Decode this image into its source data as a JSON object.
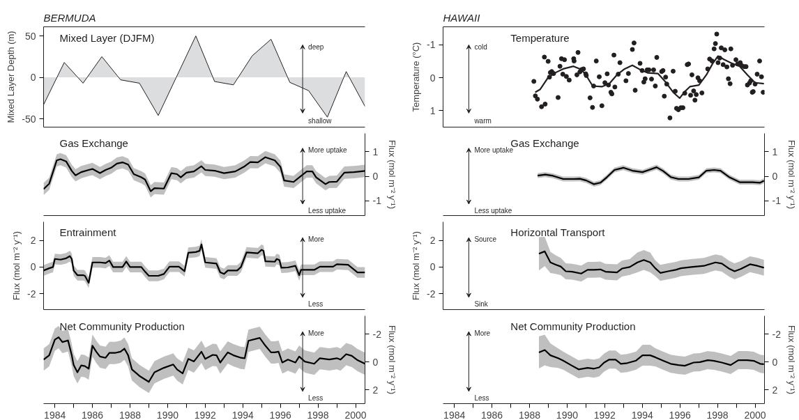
{
  "chart_data": [
    {
      "type": "area",
      "subtitle": "BERMUDA",
      "title": "Mixed Layer (DJFM)",
      "ylabel": "Mixed Layer Depth (m)",
      "xlim": [
        1983.4,
        2000.5
      ],
      "ylim": [
        -60,
        61
      ],
      "yticks": [
        50,
        0,
        -50
      ],
      "tick_labels": "y",
      "annotations": [
        "deep",
        "shallow"
      ],
      "series": [
        {
          "color": "#dcdddf",
          "x": [
            1983.4,
            1984.5,
            1985.5,
            1986.5,
            1987.5,
            1988.5,
            1989.5,
            1991.5,
            1992.5,
            1993.5,
            1994.5,
            1995.5,
            1996.5,
            1997.5,
            1998.5,
            1999.5,
            2000.5
          ],
          "values": [
            -33,
            18,
            -7,
            25,
            -3,
            -7,
            -46,
            50,
            -5,
            -9,
            26,
            46,
            -6,
            -16,
            -48,
            7,
            -35
          ]
        }
      ]
    },
    {
      "type": "scatter",
      "subtitle": "HAWAII",
      "title": "Temperature",
      "ylabel": "Temperature (°C)",
      "xlim": [
        1983.4,
        2000.5
      ],
      "ylim": [
        1.5,
        -1.55
      ],
      "yticks": [
        -1,
        0,
        1
      ],
      "tick_labels": "y",
      "annotations": [
        "cold",
        "warm"
      ],
      "series": [
        {
          "type": "scatter",
          "marker": "circle",
          "color": "#231f20",
          "x": [
            1988.23,
            1988.31,
            1988.42,
            1988.64,
            1988.83,
            1988.79,
            1988.99,
            1989.06,
            1989.11,
            1989.18,
            1989.28,
            1989.52,
            1989.62,
            1989.7,
            1989.77,
            1989.86,
            1989.96,
            1990.11,
            1990.35,
            1990.37,
            1990.52,
            1990.58,
            1990.68,
            1990.77,
            1990.87,
            1990.99,
            1991.02,
            1991.22,
            1991.35,
            1991.41,
            1991.55,
            1991.71,
            1991.85,
            1992.01,
            1992.13,
            1992.2,
            1992.33,
            1992.38,
            1992.49,
            1992.54,
            1992.72,
            1992.81,
            1993.13,
            1993.26,
            1993.47,
            1993.56,
            1993.62,
            1993.88,
            1993.99,
            1994.08,
            1994.15,
            1994.26,
            1994.35,
            1994.49,
            1994.6,
            1994.69,
            1994.77,
            1995.03,
            1995.1,
            1995.17,
            1995.24,
            1995.3,
            1995.47,
            1995.64,
            1995.75,
            1995.82,
            1995.92,
            1996.05,
            1996.16,
            1996.26,
            1996.39,
            1996.46,
            1996.57,
            1996.64,
            1996.73,
            1996.8,
            1996.87,
            1996.96,
            1997.05,
            1997.17,
            1997.48,
            1997.58,
            1997.71,
            1997.82,
            1997.89,
            1997.96,
            1998.03,
            1998.12,
            1998.2,
            1998.3,
            1998.39,
            1998.5,
            1998.58,
            1998.67,
            1998.71,
            1998.8,
            1998.98,
            1999.07,
            1999.21,
            1999.29,
            1999.43,
            1999.52,
            1999.59,
            1999.7,
            1999.77,
            1999.85,
            1999.9,
            2000.0,
            2000.11,
            2000.24,
            2000.34,
            2000.43
          ],
          "values": [
            0.11,
            0.55,
            0.65,
            0.88,
            0.8,
            -0.63,
            -0.5,
            -0.02,
            -0.16,
            -0.19,
            -0.13,
            0.6,
            -0.35,
            -0.58,
            -0.11,
            -0.55,
            -0.04,
            0.07,
            -0.58,
            -0.51,
            -0.09,
            -0.77,
            -0.18,
            -0.25,
            -0.27,
            -0.12,
            -0.07,
            0.61,
            0.9,
            0.25,
            -0.51,
            -0.03,
            0.85,
            0.15,
            -0.12,
            0.22,
            0.44,
            0.49,
            -0.69,
            0.28,
            -0.11,
            -0.46,
            0.09,
            -0.13,
            -0.86,
            -1.06,
            0.38,
            -0.44,
            -0.22,
            0.13,
            0.03,
            -0.24,
            -0.24,
            0.04,
            -0.24,
            0.25,
            -0.62,
            -0.19,
            -0.22,
            0.56,
            -0.02,
            0.19,
            1.22,
            -0.2,
            0.41,
            0.93,
            0.97,
            0.91,
            0.91,
            0.47,
            -0.4,
            -0.42,
            0.53,
            -0.09,
            0.4,
            0.68,
            0.51,
            0,
            0.09,
            0.46,
            -0.27,
            -0.57,
            -0.51,
            -0.88,
            -1.04,
            -1.33,
            -0.46,
            -0.6,
            -0.91,
            -0.4,
            -0.85,
            -0.33,
            0.03,
            0.18,
            -0.88,
            -0.38,
            -0.55,
            -0.42,
            -0.46,
            -0.37,
            -0.34,
            -0.34,
            0.22,
            0.16,
            0.09,
            0.44,
            0.42,
            0.19,
            -0.11,
            -0.51,
            -0.03,
            0.44
          ]
        },
        {
          "type": "line",
          "color": "#231f20",
          "x": [
            1988.3,
            1988.57,
            1988.98,
            1989.39,
            1989.79,
            1990.34,
            1990.68,
            1990.95,
            1991.36,
            1991.84,
            1992.24,
            1992.65,
            1993.06,
            1993.47,
            1993.88,
            1994.28,
            1994.83,
            1995.24,
            1995.64,
            1995.99,
            1996.26,
            1996.53,
            1997.01,
            1997.41,
            1997.75,
            1998.03,
            1998.37,
            1998.77,
            1999.18,
            1999.59,
            2000.0,
            2000.47
          ],
          "values": [
            0.44,
            0.35,
            0,
            -0.16,
            -0.27,
            -0.35,
            -0.27,
            -0.13,
            0.25,
            0.27,
            0.18,
            -0.09,
            -0.27,
            -0.38,
            -0.25,
            -0.15,
            -0.13,
            0.13,
            0.44,
            0.62,
            0.42,
            0.27,
            0.22,
            -0.09,
            -0.44,
            -0.66,
            -0.55,
            -0.44,
            -0.35,
            -0.09,
            0.15,
            0.18
          ]
        }
      ]
    },
    {
      "type": "line",
      "title": "Gas Exchange",
      "y2label": "Flux (mol m⁻² y⁻¹)",
      "xlim": [
        1983.4,
        2000.5
      ],
      "y2lim": [
        -1.6,
        1.75
      ],
      "y2ticks": [
        1,
        0,
        -1
      ],
      "tick_labels": "y",
      "annotations": [
        "More uptake",
        "Less uptake"
      ],
      "series": [
        {
          "axis": "y2",
          "color": "#000000",
          "x": [
            1983.4,
            1983.7,
            1984.1,
            1984.3,
            1984.6,
            1984.9,
            1985.1,
            1985.4,
            1985.8,
            1986.0,
            1986.4,
            1986.7,
            1987.0,
            1987.3,
            1987.6,
            1987.9,
            1988.2,
            1988.6,
            1988.8,
            1989.1,
            1989.3,
            1989.8,
            1990.2,
            1990.5,
            1990.7,
            1991.0,
            1991.4,
            1991.8,
            1992.0,
            1992.5,
            1993.0,
            1993.6,
            1994.1,
            1994.4,
            1994.8,
            1995.2,
            1995.7,
            1996.0,
            1996.2,
            1996.7,
            1997.4,
            1997.7,
            1997.9,
            1998.4,
            1998.6,
            1999.0,
            1999.4,
            1999.9,
            2000.5
          ],
          "values": [
            -0.52,
            -0.3,
            0.65,
            0.7,
            0.61,
            0.22,
            0.04,
            0.17,
            0.26,
            0.3,
            0.13,
            0.26,
            0.35,
            0.52,
            0.57,
            0.48,
            0.09,
            -0.04,
            -0.13,
            -0.61,
            -0.48,
            -0.5,
            0.13,
            0.09,
            -0.04,
            0.15,
            0.2,
            0.41,
            0.26,
            0.23,
            0.13,
            0.2,
            0.41,
            0.58,
            0.57,
            0.78,
            0.65,
            0.39,
            -0.17,
            -0.23,
            0.2,
            0.2,
            -0.04,
            -0.32,
            -0.23,
            -0.22,
            0.15,
            0.17,
            0.22
          ],
          "lower": [
            -0.77,
            -0.55,
            0.4,
            0.45,
            0.36,
            -0.03,
            -0.21,
            -0.08,
            0.01,
            0.05,
            -0.12,
            0.01,
            0.1,
            0.27,
            0.32,
            0.23,
            -0.16,
            -0.29,
            -0.38,
            -0.86,
            -0.73,
            -0.75,
            -0.12,
            -0.16,
            -0.29,
            -0.1,
            -0.05,
            0.16,
            0.01,
            -0.02,
            -0.12,
            -0.05,
            0.16,
            0.33,
            0.32,
            0.53,
            0.4,
            0.14,
            -0.42,
            -0.48,
            -0.05,
            -0.05,
            -0.29,
            -0.57,
            -0.48,
            -0.47,
            -0.1,
            -0.08,
            -0.03
          ],
          "upper": [
            -0.27,
            -0.05,
            0.9,
            0.95,
            0.86,
            0.47,
            0.29,
            0.42,
            0.51,
            0.55,
            0.38,
            0.51,
            0.6,
            0.77,
            0.82,
            0.73,
            0.34,
            0.21,
            0.12,
            -0.36,
            -0.23,
            -0.25,
            0.38,
            0.34,
            0.21,
            0.4,
            0.45,
            0.66,
            0.51,
            0.48,
            0.38,
            0.45,
            0.66,
            0.83,
            0.82,
            1.03,
            0.9,
            0.64,
            0.08,
            0.02,
            0.45,
            0.45,
            0.21,
            -0.07,
            0.02,
            0.03,
            0.4,
            0.42,
            0.47
          ]
        }
      ]
    },
    {
      "type": "line",
      "title": "Gas Exchange",
      "y2label": "Flux (mol m⁻² y⁻¹)",
      "xlim": [
        1983.4,
        2000.5
      ],
      "y2lim": [
        -1.6,
        1.75
      ],
      "y2ticks": [
        1,
        0,
        -1
      ],
      "tick_labels": "y",
      "annotations": [
        "More uptake",
        "Less uptake"
      ],
      "series": [
        {
          "axis": "y2",
          "color": "#000000",
          "x": [
            1988.43,
            1988.84,
            1989.25,
            1989.79,
            1990.34,
            1990.68,
            1991.02,
            1991.43,
            1991.77,
            1992.11,
            1992.52,
            1992.99,
            1993.47,
            1994.01,
            1994.35,
            1994.76,
            1995.1,
            1995.51,
            1995.92,
            1996.46,
            1997.01,
            1997.41,
            1997.82,
            1998.16,
            1998.64,
            1999.18,
            1999.86,
            2000.27,
            2000.47
          ],
          "values": [
            0.03,
            0.07,
            0.02,
            -0.11,
            -0.11,
            -0.1,
            -0.17,
            -0.32,
            -0.26,
            -0.04,
            0.26,
            0.35,
            0.23,
            0.17,
            0.26,
            0.37,
            0.22,
            -0.03,
            -0.11,
            -0.11,
            -0.04,
            0.23,
            0.26,
            0.23,
            -0.04,
            -0.24,
            -0.24,
            -0.26,
            -0.18
          ],
          "lower": [
            -0.07,
            -0.03,
            -0.08,
            -0.21,
            -0.21,
            -0.2,
            -0.27,
            -0.42,
            -0.36,
            -0.14,
            0.16,
            0.25,
            0.13,
            0.07,
            0.16,
            0.27,
            0.12,
            -0.13,
            -0.21,
            -0.21,
            -0.14,
            0.13,
            0.16,
            0.13,
            -0.14,
            -0.34,
            -0.34,
            -0.36,
            -0.28
          ],
          "upper": [
            0.13,
            0.17,
            0.12,
            -0.01,
            -0.01,
            0,
            -0.07,
            -0.22,
            -0.16,
            0.06,
            0.36,
            0.45,
            0.33,
            0.27,
            0.36,
            0.47,
            0.32,
            0.07,
            -0.01,
            -0.01,
            0.06,
            0.33,
            0.36,
            0.33,
            0.06,
            -0.14,
            -0.14,
            -0.16,
            -0.08
          ]
        }
      ]
    },
    {
      "type": "line",
      "title": "Entrainment",
      "ylabel": "Flux (mol m⁻² y⁻¹)",
      "xlim": [
        1983.4,
        2000.5
      ],
      "ylim": [
        -3.2,
        3.4
      ],
      "yticks": [
        2,
        0,
        -2
      ],
      "tick_labels": "y",
      "annotations": [
        "More",
        "Less"
      ],
      "series": [
        {
          "color": "#000000",
          "x": [
            1983.4,
            1983.7,
            1983.9,
            1984.0,
            1984.3,
            1984.6,
            1984.8,
            1984.9,
            1985.0,
            1985.2,
            1985.5,
            1985.6,
            1985.8,
            1986.0,
            1986.4,
            1986.7,
            1986.9,
            1987.1,
            1987.6,
            1987.8,
            1988.0,
            1988.6,
            1988.8,
            1989.0,
            1989.5,
            1989.8,
            1990.1,
            1990.6,
            1990.9,
            1991.1,
            1991.5,
            1991.7,
            1991.8,
            1992.0,
            1992.6,
            1992.8,
            1993.0,
            1993.2,
            1993.7,
            1993.9,
            1994.2,
            1994.8,
            1995.0,
            1995.1,
            1995.2,
            1995.7,
            1995.8,
            1995.95,
            1996.05,
            1996.4,
            1996.8,
            1997.0,
            1997.1,
            1997.8,
            1998.1,
            1998.8,
            1999.0,
            1999.6,
            2000.1,
            2000.5
          ],
          "values": [
            -0.26,
            -0.09,
            0,
            0.61,
            0.56,
            0.66,
            0.82,
            0.61,
            -0.26,
            -0.61,
            -0.61,
            -0.66,
            -1.18,
            0.35,
            0.35,
            0.3,
            0.49,
            0,
            0,
            0.42,
            0,
            0,
            -0.35,
            -0.66,
            -0.66,
            -0.52,
            0.03,
            0.03,
            -0.31,
            1.08,
            1.13,
            1.22,
            1.7,
            0.35,
            0.26,
            -0.4,
            -0.52,
            -0.26,
            -0.26,
            0,
            1.1,
            1.04,
            1.3,
            1.22,
            0.43,
            0.4,
            0.61,
            0.52,
            -0.05,
            -0.03,
            0.09,
            -0.61,
            -0.21,
            -0.21,
            0.03,
            0.03,
            0.21,
            0.17,
            -0.4,
            -0.4
          ],
          "lower": [
            -0.66,
            -0.49,
            -0.4,
            0.21,
            0.16,
            0.26,
            0.42,
            0.21,
            -0.66,
            -1.01,
            -1.01,
            -1.06,
            -1.58,
            -0.05,
            -0.05,
            -0.1,
            0.09,
            -0.4,
            -0.4,
            0.02,
            -0.4,
            -0.4,
            -0.75,
            -1.06,
            -1.06,
            -0.92,
            -0.37,
            -0.37,
            -0.71,
            0.68,
            0.73,
            0.82,
            1.3,
            -0.05,
            -0.14,
            -0.8,
            -0.92,
            -0.66,
            -0.66,
            -0.4,
            0.7,
            0.64,
            0.9,
            0.82,
            0.03,
            0,
            0.21,
            0.12,
            -0.45,
            -0.43,
            -0.31,
            -1.01,
            -0.61,
            -0.61,
            -0.37,
            -0.37,
            -0.19,
            -0.23,
            -0.8,
            -0.8
          ],
          "upper": [
            0.14,
            0.31,
            0.4,
            1.01,
            0.96,
            1.06,
            1.22,
            1.01,
            0.14,
            -0.21,
            -0.21,
            -0.26,
            -0.78,
            0.75,
            0.75,
            0.7,
            0.89,
            0.4,
            0.4,
            0.82,
            0.4,
            0.4,
            0.05,
            -0.26,
            -0.26,
            -0.12,
            0.43,
            0.43,
            0.09,
            1.48,
            1.53,
            1.62,
            2.1,
            0.75,
            0.66,
            0,
            -0.12,
            0.14,
            0.14,
            0.4,
            1.5,
            1.44,
            1.7,
            1.62,
            0.83,
            0.8,
            1.01,
            0.92,
            0.35,
            0.37,
            0.49,
            -0.21,
            0.19,
            0.19,
            0.43,
            0.43,
            0.61,
            0.57,
            0,
            0
          ]
        }
      ]
    },
    {
      "type": "line",
      "title": "Horizontal Transport",
      "ylabel": "Flux (mol m⁻² y⁻¹)",
      "xlim": [
        1983.4,
        2000.5
      ],
      "ylim": [
        -3.2,
        3.4
      ],
      "yticks": [
        2,
        0,
        -2
      ],
      "tick_labels": "y",
      "annotations": [
        "Source",
        "Sink"
      ],
      "series": [
        {
          "color": "#000000",
          "x": [
            1988.5,
            1988.81,
            1989.11,
            1989.39,
            1989.66,
            1989.93,
            1990.27,
            1990.75,
            1991.09,
            1991.43,
            1991.77,
            1992.04,
            1992.65,
            1992.92,
            1993.33,
            1993.74,
            1994.08,
            1994.42,
            1994.69,
            1994.96,
            1995.37,
            1995.78,
            1996.05,
            1996.6,
            1997.28,
            1997.89,
            1998.23,
            1998.64,
            1998.91,
            1999.25,
            1999.73,
            2000.13,
            2000.47
          ],
          "values": [
            1.0,
            1.18,
            0.35,
            0.18,
            0.04,
            -0.32,
            -0.35,
            -0.49,
            -0.21,
            -0.21,
            -0.18,
            -0.35,
            -0.4,
            -0.11,
            0,
            0.35,
            0.53,
            0.35,
            -0.09,
            -0.44,
            -0.32,
            -0.21,
            -0.09,
            0,
            0.09,
            0.35,
            0.26,
            -0.14,
            -0.32,
            -0.14,
            0.21,
            0.09,
            -0.05
          ],
          "lower": [
            -0.25,
            0.08,
            -0.45,
            -0.52,
            -0.61,
            -0.92,
            -0.95,
            -1.09,
            -0.81,
            -0.81,
            -0.78,
            -0.95,
            -1.0,
            -0.71,
            -0.6,
            -0.4,
            -0.22,
            -0.4,
            -0.69,
            -1.04,
            -0.92,
            -0.81,
            -0.69,
            -0.6,
            -0.51,
            -0.25,
            -0.34,
            -0.74,
            -0.92,
            -0.74,
            -0.39,
            -0.51,
            -0.65
          ],
          "upper": [
            2.25,
            2.28,
            1.15,
            0.88,
            0.69,
            0.28,
            0.25,
            0.11,
            0.39,
            0.39,
            0.42,
            0.25,
            0.2,
            0.49,
            0.6,
            1.1,
            1.28,
            1.1,
            0.51,
            0.16,
            0.28,
            0.39,
            0.51,
            0.6,
            0.69,
            0.95,
            0.86,
            0.46,
            0.28,
            0.46,
            0.81,
            0.69,
            0.55
          ]
        }
      ]
    },
    {
      "type": "line",
      "title": "Net Community Production",
      "y2label": "Flux (mol m⁻² y⁻¹)",
      "xlim": [
        1983.4,
        2000.5
      ],
      "xticks": [
        1984,
        {
          "value": 1985,
          "label": null
        },
        1986,
        {
          "value": 1987,
          "label": null
        },
        1988,
        {
          "value": 1989,
          "label": null
        },
        1990,
        {
          "value": 1991,
          "label": null
        },
        1992,
        {
          "value": 1993,
          "label": null
        },
        1994,
        {
          "value": 1995,
          "label": null
        },
        1996,
        {
          "value": 1997,
          "label": null
        },
        1998,
        {
          "value": 1999,
          "label": null
        },
        2000
      ],
      "y2lim": [
        3.0,
        -3.3
      ],
      "y2ticks": [
        -2,
        0,
        2
      ],
      "annotations": [
        "More",
        "Less"
      ],
      "series": [
        {
          "axis": "y2",
          "color": "#000000",
          "x": [
            1983.4,
            1983.7,
            1984.0,
            1984.2,
            1984.4,
            1984.7,
            1984.9,
            1985.0,
            1985.2,
            1985.4,
            1985.6,
            1985.8,
            1986.0,
            1986.2,
            1986.4,
            1986.7,
            1986.9,
            1987.2,
            1987.5,
            1987.7,
            1987.9,
            1988.1,
            1988.5,
            1989.0,
            1989.3,
            1989.8,
            1990.3,
            1990.5,
            1990.8,
            1991.1,
            1991.4,
            1991.8,
            1992.0,
            1992.4,
            1992.6,
            1992.8,
            1993.2,
            1993.5,
            1993.9,
            1994.1,
            1994.3,
            1994.9,
            1995.2,
            1995.5,
            1995.7,
            1995.9,
            1996.1,
            1996.4,
            1996.8,
            1997.0,
            1997.3,
            1997.8,
            1998.1,
            1998.6,
            1999.0,
            1999.2,
            1999.5,
            1999.8,
            2000.1,
            2000.5
          ],
          "values": [
            -0.16,
            -0.47,
            -1.59,
            -1.77,
            -1.42,
            -1.54,
            -0.47,
            0.23,
            0.75,
            0.26,
            0.31,
            0.49,
            -1.16,
            -0.73,
            -0.38,
            -0.29,
            -0.64,
            -0.64,
            -0.73,
            -0.95,
            -0.47,
            0.54,
            1.01,
            1.44,
            0.75,
            0.43,
            0.19,
            0.54,
            0.83,
            -0.21,
            -0.03,
            -0.73,
            -0.21,
            -0.5,
            -0.47,
            0.05,
            -0.68,
            -0.47,
            -0.29,
            -0.26,
            -1.51,
            -1.72,
            -1.16,
            -0.68,
            -0.68,
            -0.73,
            0.05,
            -0.16,
            0.05,
            -0.38,
            -0.02,
            0.14,
            -0.26,
            -0.17,
            -0.26,
            -0.16,
            -0.55,
            -0.43,
            -0.12,
            0.14
          ],
          "lower": [
            -0.96,
            -1.27,
            -2.39,
            -2.57,
            -2.22,
            -2.34,
            -1.27,
            -0.57,
            -0.05,
            -0.54,
            -0.49,
            -0.31,
            -1.96,
            -1.53,
            -1.18,
            -1.09,
            -1.44,
            -1.44,
            -1.53,
            -1.75,
            -1.27,
            -0.26,
            0.21,
            0.64,
            -0.05,
            -0.37,
            -0.61,
            -0.26,
            0.03,
            -1.01,
            -0.83,
            -1.53,
            -1.01,
            -1.3,
            -1.27,
            -0.75,
            -1.48,
            -1.27,
            -1.09,
            -1.06,
            -2.31,
            -2.52,
            -1.96,
            -1.48,
            -1.48,
            -1.53,
            -0.75,
            -0.96,
            -0.75,
            -1.18,
            -0.82,
            -0.66,
            -1.06,
            -0.97,
            -1.06,
            -0.96,
            -1.35,
            -1.23,
            -0.92,
            -0.66
          ],
          "upper": [
            0.64,
            0.33,
            -0.79,
            -0.97,
            -0.62,
            -0.74,
            0.33,
            1.03,
            1.55,
            1.06,
            1.11,
            1.29,
            -0.36,
            0.07,
            0.42,
            0.51,
            0.16,
            0.16,
            0.07,
            -0.15,
            0.33,
            1.34,
            1.81,
            2.24,
            1.55,
            1.23,
            0.99,
            1.34,
            1.63,
            0.59,
            0.77,
            0.07,
            0.59,
            0.3,
            0.33,
            0.85,
            0.12,
            0.33,
            0.51,
            0.54,
            -0.71,
            -0.92,
            -0.36,
            0.12,
            0.12,
            0.07,
            0.85,
            0.64,
            0.85,
            0.42,
            0.78,
            0.94,
            0.54,
            0.63,
            0.54,
            0.64,
            0.25,
            0.37,
            0.68,
            0.94
          ]
        }
      ]
    },
    {
      "type": "line",
      "title": "Net Community Production",
      "y2label": "Flux (mol m⁻² y⁻¹)",
      "xlim": [
        1983.4,
        2000.5
      ],
      "xticks": [
        1984,
        {
          "value": 1985,
          "label": null
        },
        1986,
        {
          "value": 1987,
          "label": null
        },
        1988,
        {
          "value": 1989,
          "label": null
        },
        1990,
        {
          "value": 1991,
          "label": null
        },
        1992,
        {
          "value": 1993,
          "label": null
        },
        1994,
        {
          "value": 1995,
          "label": null
        },
        1996,
        {
          "value": 1997,
          "label": null
        },
        1998,
        {
          "value": 1999,
          "label": null
        },
        2000
      ],
      "y2lim": [
        3.0,
        -3.3
      ],
      "y2ticks": [
        -2,
        0,
        2
      ],
      "annotations": [
        "More",
        "Less"
      ],
      "series": [
        {
          "axis": "y2",
          "color": "#000000",
          "x": [
            1988.5,
            1988.81,
            1989.11,
            1989.52,
            1989.79,
            1990.2,
            1990.61,
            1991.09,
            1991.43,
            1991.7,
            1991.97,
            1992.24,
            1992.58,
            1992.86,
            1993.2,
            1993.67,
            1994.01,
            1994.42,
            1994.69,
            1995.1,
            1995.51,
            1995.92,
            1996.26,
            1996.73,
            1997.07,
            1997.48,
            1997.82,
            1998.23,
            1998.7,
            1999.11,
            1999.59,
            1999.93,
            2000.27,
            2000.47
          ],
          "values": [
            -0.68,
            -0.85,
            -0.47,
            -0.26,
            -0.09,
            0.23,
            0.54,
            0.43,
            0.49,
            0.4,
            0.05,
            -0.16,
            -0.16,
            0.14,
            0.09,
            -0.09,
            -0.47,
            -0.47,
            -0.33,
            -0.09,
            0.14,
            0.23,
            0.28,
            0.05,
            0.02,
            -0.12,
            -0.07,
            0.05,
            0.23,
            -0.12,
            -0.12,
            -0.07,
            0.14,
            0.17
          ],
          "lower": [
            -1.83,
            -1.95,
            -1.32,
            -0.96,
            -0.74,
            -0.42,
            -0.11,
            -0.22,
            -0.16,
            -0.25,
            -0.6,
            -0.81,
            -0.81,
            -0.51,
            -0.56,
            -0.74,
            -1.22,
            -1.22,
            -0.98,
            -0.74,
            -0.51,
            -0.42,
            -0.37,
            -0.6,
            -0.63,
            -0.77,
            -0.72,
            -0.6,
            -0.42,
            -0.77,
            -0.77,
            -0.72,
            -0.51,
            -0.48
          ],
          "upper": [
            0.47,
            0.25,
            0.38,
            0.44,
            0.56,
            0.88,
            1.19,
            1.08,
            1.14,
            1.05,
            0.7,
            0.49,
            0.49,
            0.79,
            0.74,
            0.56,
            0.28,
            0.28,
            0.32,
            0.56,
            0.79,
            0.88,
            0.93,
            0.7,
            0.67,
            0.53,
            0.58,
            0.7,
            0.88,
            0.53,
            0.53,
            0.58,
            0.79,
            0.82
          ]
        }
      ]
    }
  ]
}
